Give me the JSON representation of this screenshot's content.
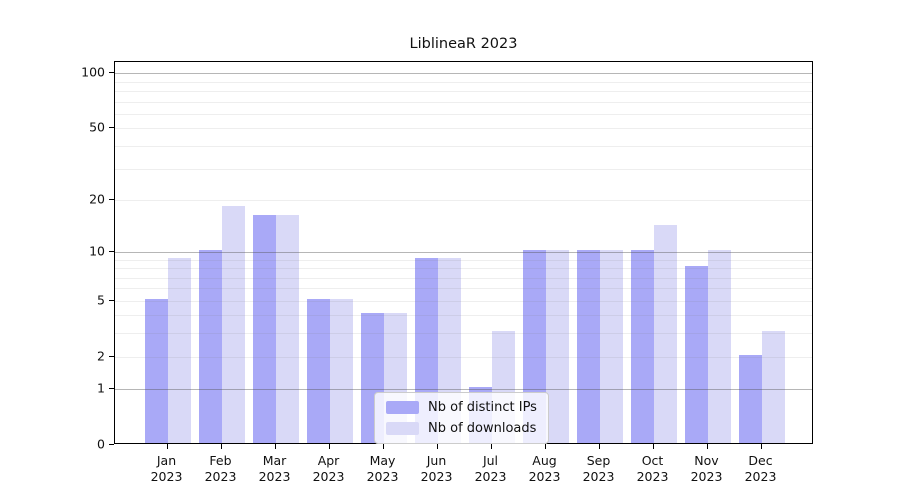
{
  "title": "LiblineaR 2023",
  "colors": {
    "ips": "#a9a9f7",
    "downloads": "#d9d9f7",
    "axis": "#000000",
    "background": "#ffffff"
  },
  "legend": {
    "items": [
      {
        "label": "Nb of distinct IPs",
        "color_key": "ips"
      },
      {
        "label": "Nb of downloads",
        "color_key": "downloads"
      }
    ]
  },
  "chart_data": {
    "type": "bar",
    "title": "LiblineaR 2023",
    "categories": [
      "Jan 2023",
      "Feb 2023",
      "Mar 2023",
      "Apr 2023",
      "May 2023",
      "Jun 2023",
      "Jul 2023",
      "Aug 2023",
      "Sep 2023",
      "Oct 2023",
      "Nov 2023",
      "Dec 2023"
    ],
    "series": [
      {
        "name": "Nb of distinct IPs",
        "color_key": "ips",
        "values": [
          5,
          10,
          16,
          5,
          4,
          9,
          1,
          10,
          10,
          10,
          8,
          2
        ]
      },
      {
        "name": "Nb of downloads",
        "color_key": "downloads",
        "values": [
          9,
          18,
          16,
          5,
          4,
          9,
          3,
          10,
          10,
          14,
          10,
          3
        ]
      }
    ],
    "xlabel": "",
    "ylabel": "",
    "yscale": "log1p",
    "yticks": [
      0,
      1,
      2,
      5,
      10,
      20,
      50,
      100
    ],
    "major_gridlines": [
      1,
      10,
      100
    ],
    "minor_gridlines": [
      2,
      3,
      4,
      5,
      6,
      7,
      8,
      9,
      20,
      30,
      40,
      50,
      60,
      70,
      80,
      90
    ],
    "ylim": [
      0,
      115
    ],
    "grid": "horizontal",
    "legend_position": "bottom-center"
  }
}
